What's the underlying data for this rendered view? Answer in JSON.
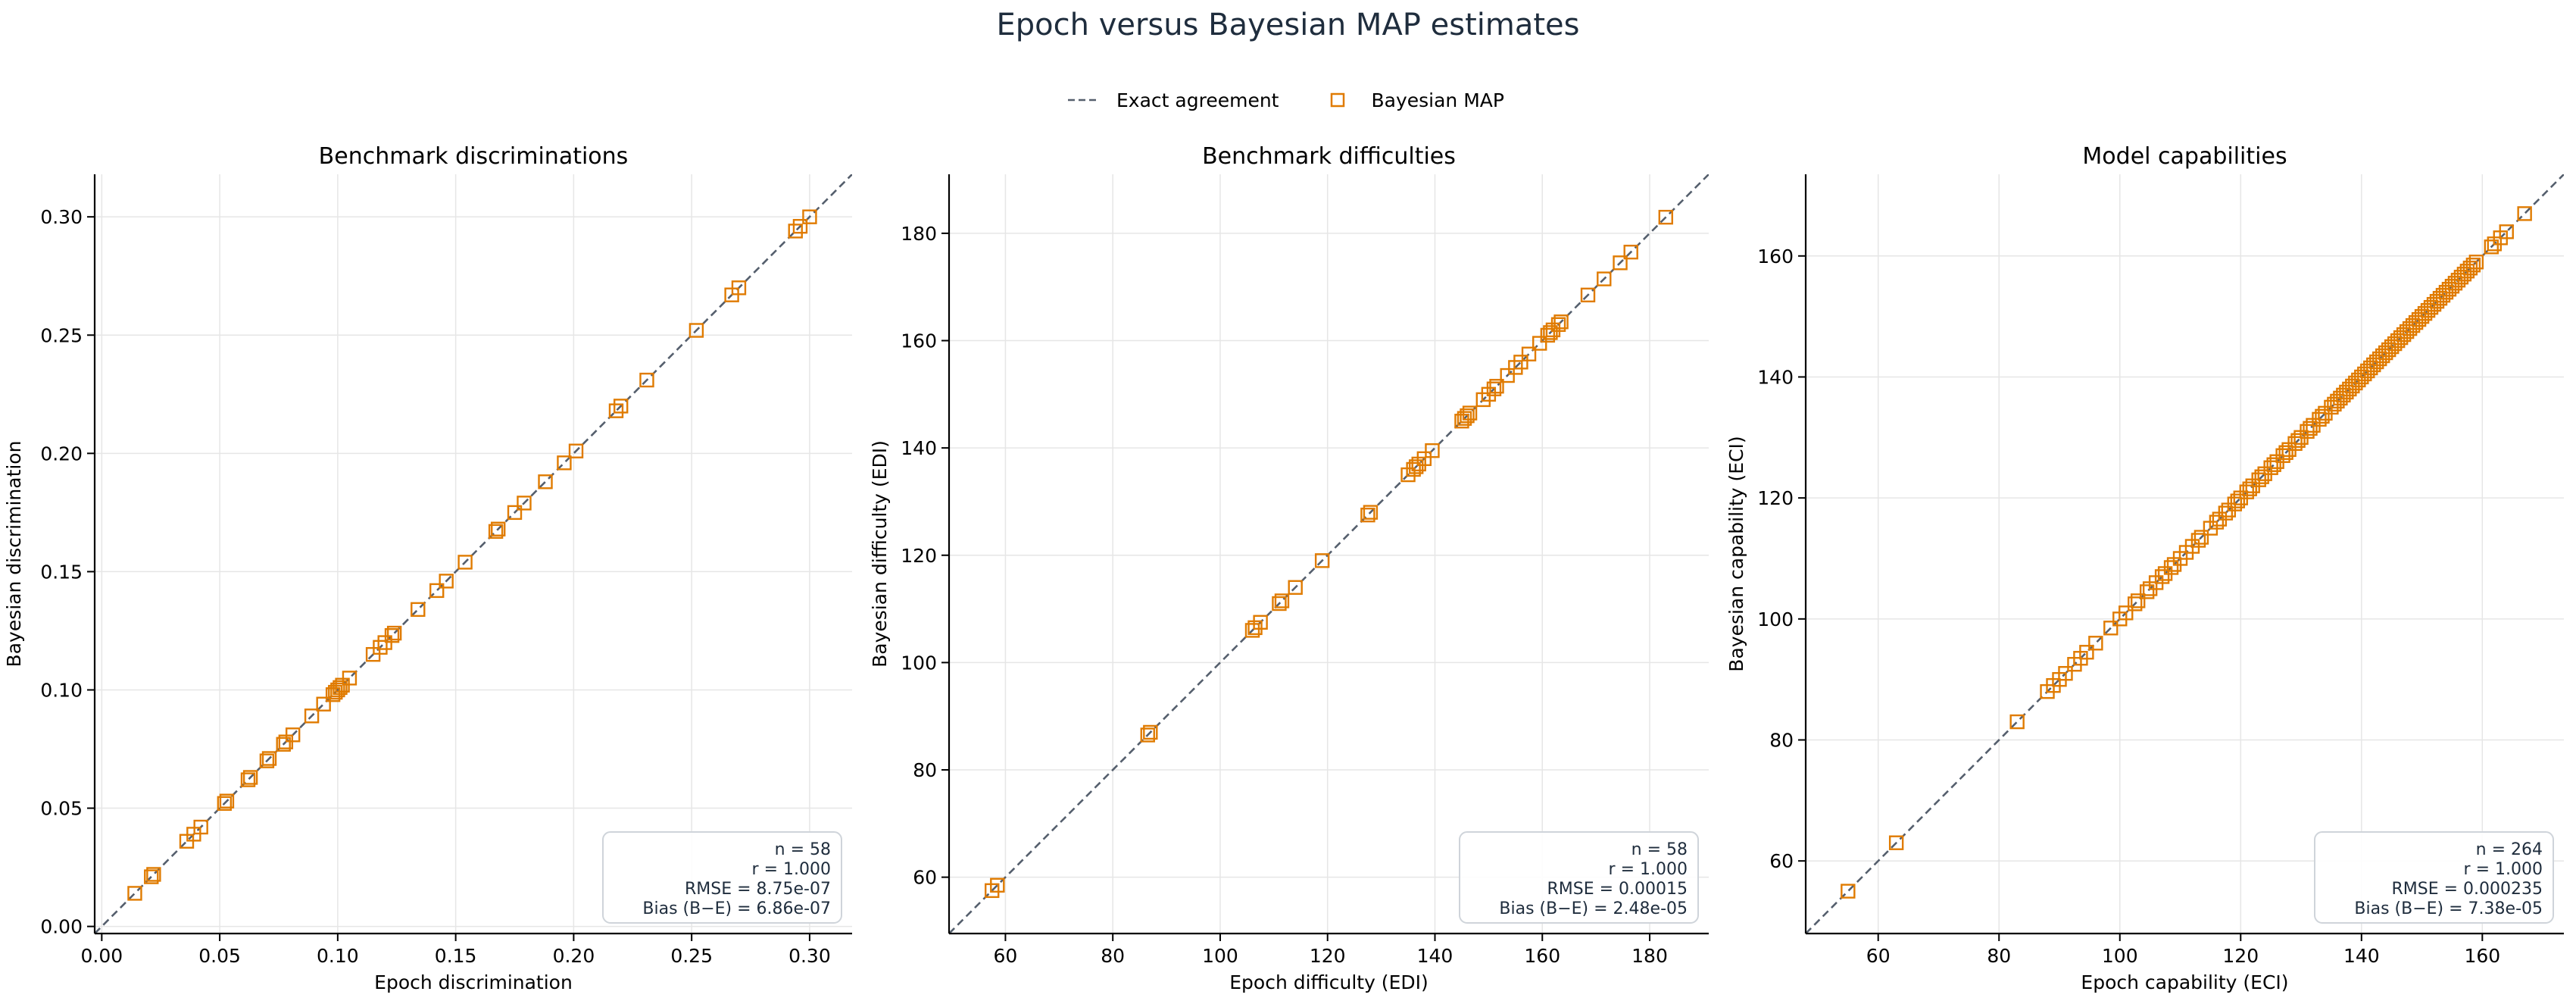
{
  "figure": {
    "title": "Epoch versus Bayesian MAP estimates",
    "legend": [
      {
        "label": "Exact agreement",
        "kind": "dashed-line",
        "color": "#555f6d"
      },
      {
        "label": "Bayesian MAP",
        "kind": "hollow-square",
        "color": "#e07b00"
      }
    ]
  },
  "colors": {
    "marker": "#e07b00",
    "reference_line": "#555f6d",
    "grid": "#e6e6e6",
    "title": "#1f2d3d",
    "stats_text": "#1f2d3d"
  },
  "chart_data": [
    {
      "type": "scatter",
      "title": "Benchmark discriminations",
      "xlabel": "Epoch discrimination",
      "ylabel": "Bayesian discrimination",
      "xlim": [
        -0.003,
        0.318
      ],
      "ylim": [
        -0.003,
        0.318
      ],
      "xticks": [
        0.0,
        0.05,
        0.1,
        0.15,
        0.2,
        0.25,
        0.3
      ],
      "yticks": [
        0.0,
        0.05,
        0.1,
        0.15,
        0.2,
        0.25,
        0.3
      ],
      "xtick_labels": [
        "0.00",
        "0.05",
        "0.10",
        "0.15",
        "0.20",
        "0.25",
        "0.30"
      ],
      "ytick_labels": [
        "0.00",
        "0.05",
        "0.10",
        "0.15",
        "0.20",
        "0.25",
        "0.30"
      ],
      "grid": true,
      "reference_line": "y = x",
      "stats_location": "lower-right",
      "stats": [
        "n = 58",
        "r = 1.000",
        "RMSE = 8.75e-07",
        "Bias (B−E) = 6.86e-07"
      ],
      "series": [
        {
          "name": "Bayesian MAP",
          "x": [
            0.014,
            0.021,
            0.022,
            0.036,
            0.039,
            0.042,
            0.052,
            0.053,
            0.062,
            0.063,
            0.07,
            0.071,
            0.077,
            0.078,
            0.081,
            0.089,
            0.094,
            0.098,
            0.099,
            0.1,
            0.101,
            0.102,
            0.105,
            0.115,
            0.118,
            0.12,
            0.123,
            0.124,
            0.134,
            0.142,
            0.146,
            0.154,
            0.167,
            0.168,
            0.175,
            0.179,
            0.188,
            0.196,
            0.201,
            0.218,
            0.22,
            0.231,
            0.252,
            0.267,
            0.27,
            0.294,
            0.296,
            0.3
          ]
        }
      ]
    },
    {
      "type": "scatter",
      "title": "Benchmark difficulties",
      "xlabel": "Epoch difficulty (EDI)",
      "ylabel": "Bayesian difficulty (EDI)",
      "xlim": [
        49.5,
        191.0
      ],
      "ylim": [
        49.5,
        191.0
      ],
      "xticks": [
        60,
        80,
        100,
        120,
        140,
        160,
        180
      ],
      "yticks": [
        60,
        80,
        100,
        120,
        140,
        160,
        180
      ],
      "xtick_labels": [
        "60",
        "80",
        "100",
        "120",
        "140",
        "160",
        "180"
      ],
      "ytick_labels": [
        "60",
        "80",
        "100",
        "120",
        "140",
        "160",
        "180"
      ],
      "grid": true,
      "reference_line": "y = x",
      "stats_location": "lower-right",
      "stats": [
        "n = 58",
        "r = 1.000",
        "RMSE = 0.00015",
        "Bias (B−E) = 2.48e-05"
      ],
      "series": [
        {
          "name": "Bayesian MAP",
          "x": [
            57.5,
            58.5,
            86.5,
            87.0,
            106.0,
            106.5,
            107.5,
            111.0,
            111.5,
            114.0,
            119.0,
            127.5,
            128.0,
            135.0,
            136.0,
            136.5,
            137.0,
            138.0,
            139.5,
            145.0,
            145.5,
            146.0,
            146.5,
            149.0,
            150.0,
            151.0,
            151.5,
            153.5,
            155.0,
            156.0,
            157.5,
            159.5,
            161.0,
            161.5,
            162.0,
            163.0,
            163.5,
            168.5,
            171.5,
            174.5,
            176.5,
            183.0
          ]
        }
      ]
    },
    {
      "type": "scatter",
      "title": "Model capabilities",
      "xlabel": "Epoch capability (ECI)",
      "ylabel": "Bayesian capability (ECI)",
      "xlim": [
        48.0,
        173.5
      ],
      "ylim": [
        48.0,
        173.5
      ],
      "xticks": [
        60,
        80,
        100,
        120,
        140,
        160
      ],
      "yticks": [
        60,
        80,
        100,
        120,
        140,
        160
      ],
      "xtick_labels": [
        "60",
        "80",
        "100",
        "120",
        "140",
        "160"
      ],
      "ytick_labels": [
        "60",
        "80",
        "100",
        "120",
        "140",
        "160"
      ],
      "grid": true,
      "reference_line": "y = x",
      "stats_location": "lower-right",
      "stats": [
        "n = 264",
        "r = 1.000",
        "RMSE = 0.000235",
        "Bias (B−E) = 7.38e-05"
      ],
      "series": [
        {
          "name": "Bayesian MAP",
          "x": [
            55.0,
            63.0,
            83.0,
            88.0,
            89.0,
            90.0,
            91.0,
            92.5,
            93.5,
            94.5,
            96.0,
            98.5,
            100.0,
            101.0,
            102.5,
            103.0,
            104.5,
            105.0,
            106.0,
            107.0,
            107.5,
            108.5,
            109.0,
            110.0,
            111.0,
            112.0,
            113.0,
            113.5,
            115.0,
            116.0,
            116.5,
            117.5,
            118.0,
            119.0,
            119.5,
            120.0,
            121.0,
            121.5,
            122.0,
            123.0,
            123.5,
            124.0,
            125.0,
            125.5,
            126.0,
            127.0,
            127.5,
            128.0,
            129.0,
            129.5,
            130.0,
            131.0,
            131.5,
            132.0,
            133.0,
            133.5,
            134.0,
            135.0,
            135.5,
            136.0,
            136.5,
            137.0,
            137.5,
            138.0,
            138.5,
            139.0,
            139.5,
            140.0,
            140.5,
            141.0,
            141.5,
            142.0,
            142.5,
            143.0,
            143.5,
            144.0,
            144.5,
            145.0,
            145.5,
            146.0,
            146.5,
            147.0,
            147.5,
            148.0,
            148.5,
            149.0,
            149.5,
            150.0,
            150.5,
            151.0,
            151.5,
            152.0,
            152.5,
            153.0,
            153.5,
            154.0,
            154.5,
            155.0,
            155.5,
            156.0,
            156.5,
            157.0,
            157.5,
            158.0,
            158.5,
            159.0,
            161.5,
            162.0,
            163.0,
            164.0,
            167.0
          ]
        }
      ]
    }
  ]
}
